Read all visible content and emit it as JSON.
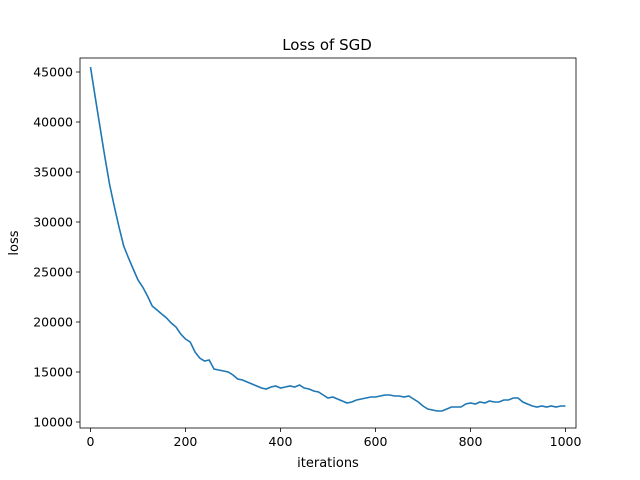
{
  "chart_data": {
    "type": "line",
    "title": "Loss of SGD",
    "xlabel": "iterations",
    "ylabel": "loss",
    "xlim": [
      -22,
      1022
    ],
    "ylim": [
      9400,
      46400
    ],
    "xticks": [
      0,
      200,
      400,
      600,
      800,
      1000
    ],
    "yticks": [
      10000,
      15000,
      20000,
      25000,
      30000,
      35000,
      40000,
      45000
    ],
    "grid": false,
    "line_color": "#1f77b4",
    "series": [
      {
        "x": [
          0,
          10,
          20,
          30,
          40,
          50,
          60,
          70,
          80,
          90,
          100,
          110,
          120,
          130,
          140,
          150,
          160,
          170,
          180,
          190,
          200,
          210,
          220,
          230,
          240,
          250,
          260,
          270,
          280,
          290,
          300,
          310,
          320,
          330,
          340,
          350,
          360,
          370,
          380,
          390,
          400,
          410,
          420,
          430,
          440,
          450,
          460,
          470,
          480,
          490,
          500,
          510,
          520,
          530,
          540,
          550,
          560,
          570,
          580,
          590,
          600,
          610,
          620,
          630,
          640,
          650,
          660,
          670,
          680,
          690,
          700,
          710,
          720,
          730,
          740,
          750,
          760,
          770,
          780,
          790,
          800,
          810,
          820,
          830,
          840,
          850,
          860,
          870,
          880,
          890,
          900,
          910,
          920,
          930,
          940,
          950,
          960,
          970,
          980,
          990,
          1000
        ],
        "values": [
          45500,
          42500,
          39500,
          36600,
          33800,
          31600,
          29500,
          27600,
          26400,
          25300,
          24200,
          23500,
          22600,
          21600,
          21200,
          20800,
          20400,
          19900,
          19500,
          18800,
          18300,
          18000,
          17000,
          16400,
          16100,
          16200,
          15300,
          15200,
          15100,
          15000,
          14700,
          14300,
          14200,
          14000,
          13800,
          13600,
          13400,
          13300,
          13500,
          13600,
          13400,
          13500,
          13600,
          13500,
          13700,
          13400,
          13300,
          13100,
          13000,
          12700,
          12400,
          12500,
          12300,
          12100,
          11900,
          12000,
          12200,
          12300,
          12400,
          12500,
          12500,
          12600,
          12700,
          12700,
          12600,
          12600,
          12500,
          12600,
          12300,
          12000,
          11600,
          11300,
          11200,
          11100,
          11100,
          11300,
          11500,
          11500,
          11500,
          11800,
          11900,
          11800,
          12000,
          11900,
          12100,
          12000,
          12000,
          12200,
          12200,
          12400,
          12400,
          12000,
          11800,
          11600,
          11500,
          11600,
          11500,
          11600,
          11500,
          11600,
          11600
        ]
      }
    ]
  }
}
